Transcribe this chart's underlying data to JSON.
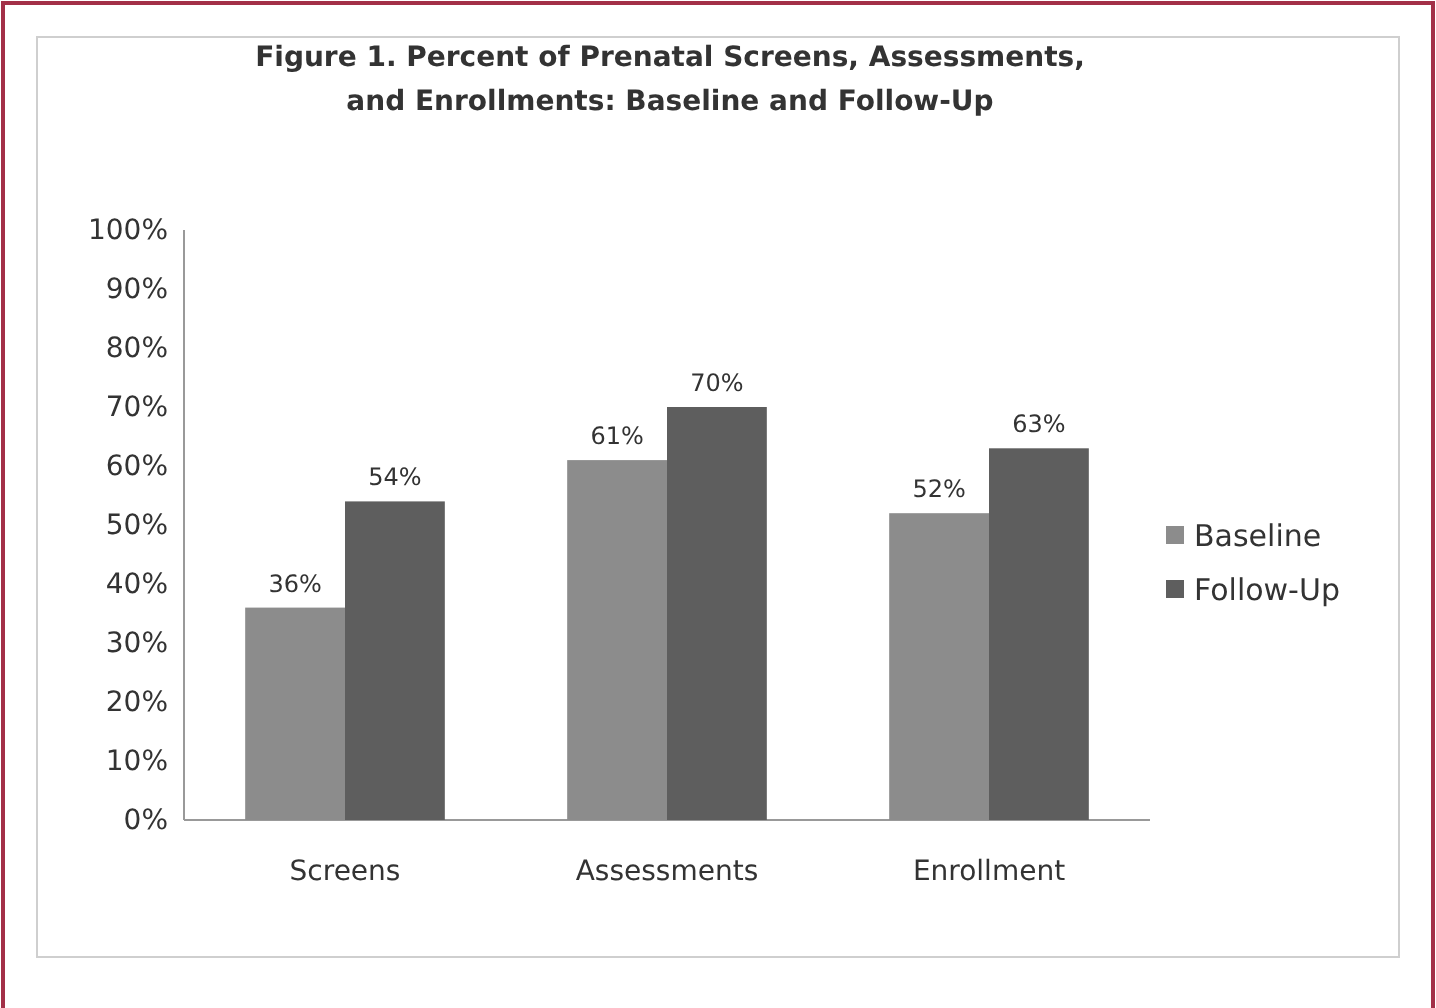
{
  "chart_data": {
    "type": "bar",
    "title": "Figure 1. Percent of Prenatal Screens, Assessments,\nand Enrollments: Baseline and Follow-Up",
    "categories": [
      "Screens",
      "Assessments",
      "Enrollment"
    ],
    "series": [
      {
        "name": "Baseline",
        "color": "#8c8c8c",
        "values": [
          36,
          61,
          52
        ],
        "value_labels": [
          "36%",
          "61%",
          "52%"
        ]
      },
      {
        "name": "Follow-Up",
        "color": "#5e5e5e",
        "values": [
          54,
          70,
          63
        ],
        "value_labels": [
          "54%",
          "70%",
          "63%"
        ]
      }
    ],
    "ylim": [
      0,
      100
    ],
    "yticks": [
      {
        "value": 0,
        "label": "0%"
      },
      {
        "value": 10,
        "label": "10%"
      },
      {
        "value": 20,
        "label": "20%"
      },
      {
        "value": 30,
        "label": "30%"
      },
      {
        "value": 40,
        "label": "40%"
      },
      {
        "value": 50,
        "label": "50%"
      },
      {
        "value": 60,
        "label": "60%"
      },
      {
        "value": 70,
        "label": "70%"
      },
      {
        "value": 80,
        "label": "80%"
      },
      {
        "value": 90,
        "label": "90%"
      },
      {
        "value": 100,
        "label": "100%"
      }
    ],
    "grid": false,
    "legend": "right"
  }
}
